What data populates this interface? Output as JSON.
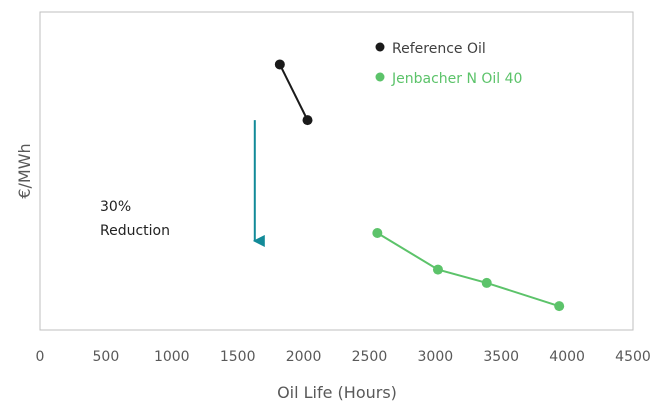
{
  "chart_data": {
    "type": "line",
    "xlabel": "Oil Life (Hours)",
    "ylabel": "€/MWh",
    "xlim": [
      0,
      4500
    ],
    "x_ticks": [
      0,
      500,
      1000,
      1500,
      2000,
      2500,
      3000,
      3500,
      4000,
      4500
    ],
    "y_ticks_shown": false,
    "grid": false,
    "legend_position": "top-right",
    "series": [
      {
        "name": "Reference Oil",
        "color": "#1a1a1a",
        "points": [
          [
            1820,
            0.835
          ],
          [
            2030,
            0.66
          ]
        ]
      },
      {
        "name": "Jenbacher N Oil 40",
        "color": "#5cc36a",
        "points": [
          [
            2560,
            0.305
          ],
          [
            3020,
            0.19
          ],
          [
            3390,
            0.148
          ],
          [
            3940,
            0.075
          ]
        ]
      }
    ],
    "annotations": [
      {
        "type": "arrow",
        "color": "#128a98",
        "x": 1630,
        "from_y": 0.66,
        "to_y": 0.28,
        "label_lines": [
          "30%",
          "Reduction"
        ]
      }
    ]
  }
}
